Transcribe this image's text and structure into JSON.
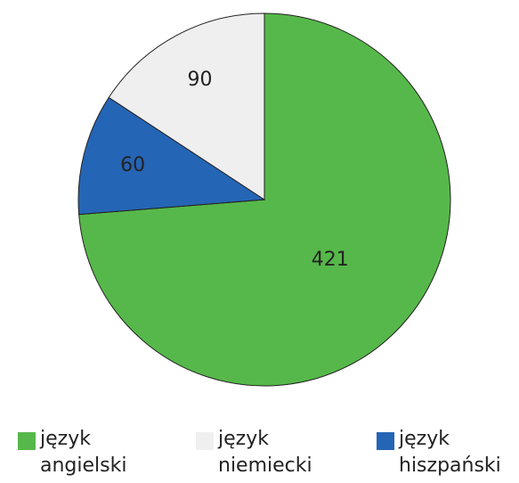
{
  "chart_data": {
    "type": "pie",
    "categories": [
      "język angielski",
      "język niemiecki",
      "język hiszpański"
    ],
    "values": [
      421,
      90,
      60
    ],
    "colors": [
      "#56b84a",
      "#efefef",
      "#2565b5"
    ]
  }
}
